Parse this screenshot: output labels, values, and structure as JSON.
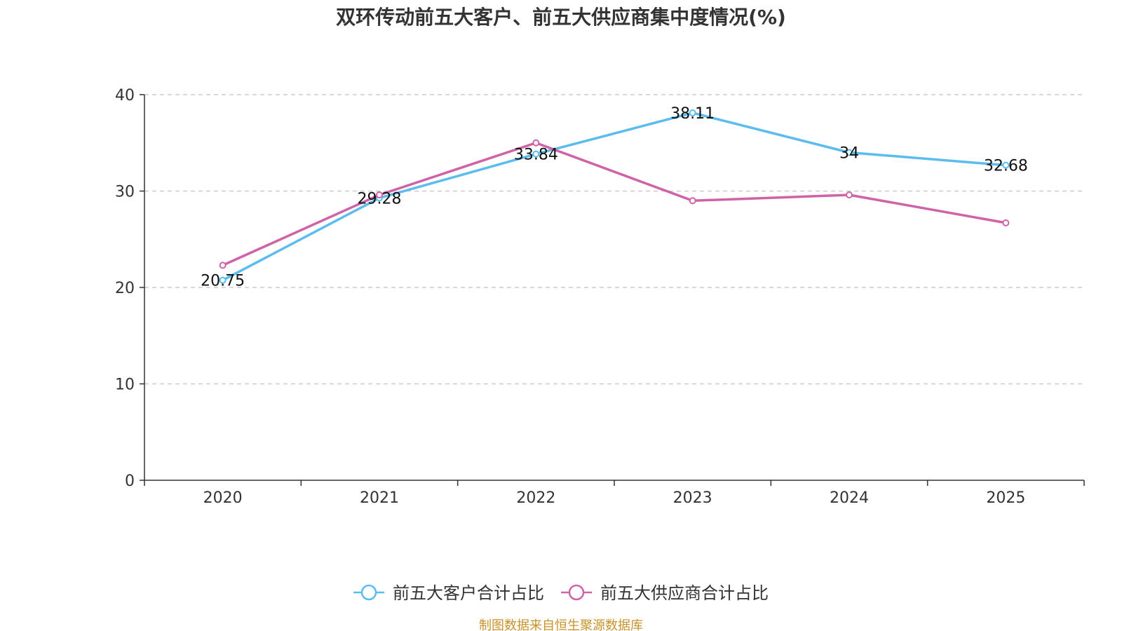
{
  "chart_data": {
    "type": "line",
    "title": "双环传动前五大客户、前五大供应商集中度情况(%)",
    "categories": [
      "2020",
      "2021",
      "2022",
      "2023",
      "2024",
      "2025"
    ],
    "series": [
      {
        "name": "前五大客户合计占比",
        "color": "#5bbcf0",
        "values": [
          20.75,
          29.28,
          33.84,
          38.11,
          34,
          32.68
        ],
        "labels": [
          "20.75",
          "29.28",
          "33.84",
          "38.11",
          "34",
          "32.68"
        ]
      },
      {
        "name": "前五大供应商合计占比",
        "color": "#d063a8",
        "values": [
          22.3,
          29.6,
          35.0,
          29.0,
          29.6,
          26.7
        ]
      }
    ],
    "ylim": [
      0,
      40
    ],
    "yticks": [
      0,
      10,
      20,
      30,
      40
    ],
    "grid": true,
    "legend": "bottom-center",
    "xlabel": "",
    "ylabel": ""
  },
  "source_note": "制图数据来自恒生聚源数据库"
}
